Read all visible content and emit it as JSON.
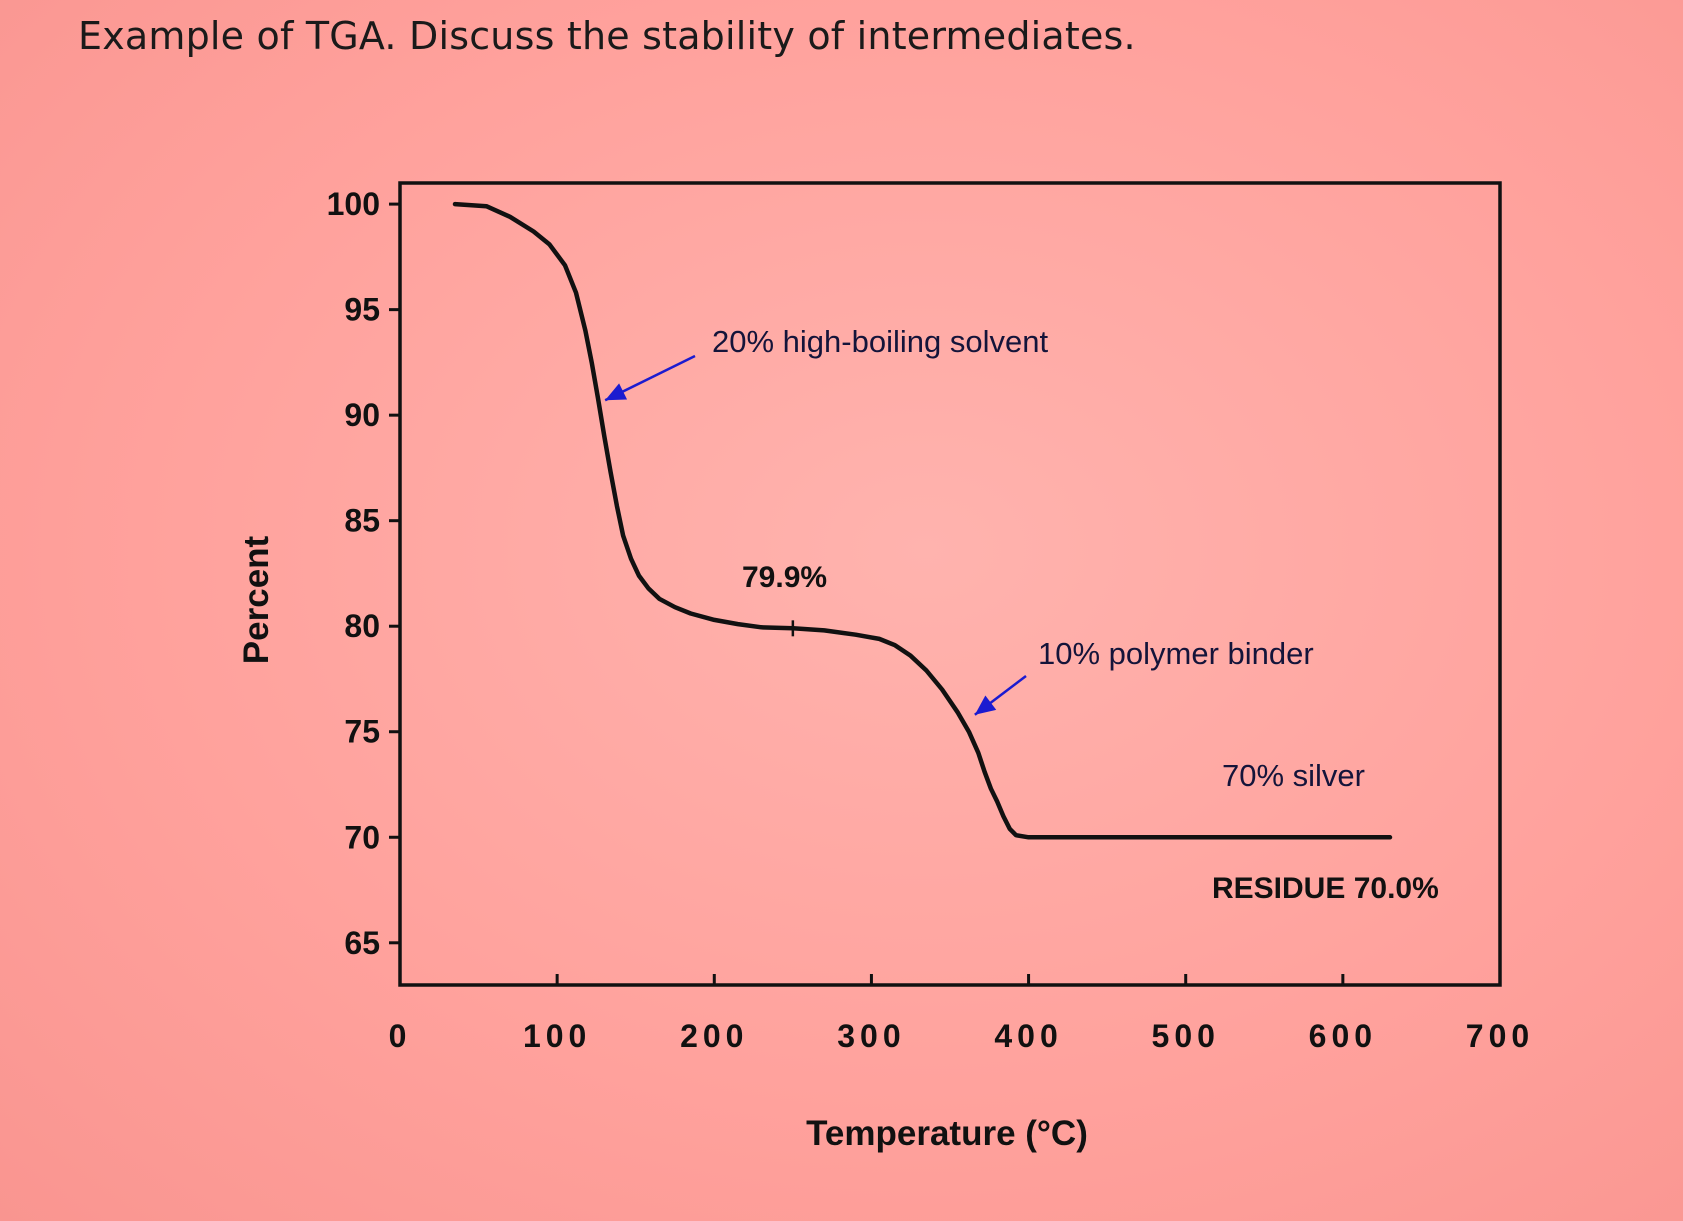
{
  "question": "Example of TGA. Discuss the stability of intermediates.",
  "chart_data": {
    "type": "line",
    "xlabel": "Temperature (°C)",
    "ylabel": "Percent",
    "xlim": [
      0,
      700
    ],
    "ylim": [
      63,
      101
    ],
    "x_ticks": [
      "0",
      "100",
      "200",
      "300",
      "400",
      "500",
      "600",
      "700"
    ],
    "y_ticks": [
      "100",
      "95",
      "90",
      "85",
      "80",
      "75",
      "70",
      "65"
    ],
    "grid": false,
    "series": [
      {
        "x": [
          35,
          55,
          70,
          85,
          95,
          105,
          112,
          118,
          122,
          126,
          130,
          134,
          138,
          142,
          147,
          152,
          158,
          165,
          175,
          185,
          200,
          215,
          230,
          250,
          270,
          290,
          305,
          315,
          325,
          335,
          345,
          355,
          362,
          368,
          372,
          376,
          380,
          384,
          388,
          392,
          400,
          450,
          500,
          550,
          600,
          630
        ],
        "y": [
          100.0,
          99.9,
          99.4,
          98.7,
          98.1,
          97.1,
          95.8,
          94.0,
          92.5,
          90.8,
          89.0,
          87.3,
          85.7,
          84.3,
          83.2,
          82.4,
          81.8,
          81.3,
          80.9,
          80.6,
          80.3,
          80.1,
          79.95,
          79.9,
          79.8,
          79.6,
          79.4,
          79.1,
          78.6,
          77.9,
          77.0,
          75.9,
          75.0,
          74.0,
          73.1,
          72.3,
          71.7,
          71.0,
          70.4,
          70.1,
          70.0,
          70.0,
          70.0,
          70.0,
          70.0,
          70.0
        ]
      }
    ],
    "annotations": [
      {
        "text": "20% high-boiling solvent",
        "x": 128,
        "y": 90.8,
        "color": "#1b1bd0"
      },
      {
        "text": "79.9%",
        "x": 250,
        "y": 79.9
      },
      {
        "text": "10% polymer binder",
        "x": 362,
        "y": 75.9,
        "color": "#1b1bd0"
      },
      {
        "text": "70% silver"
      },
      {
        "text": "RESIDUE 70.0%"
      }
    ]
  }
}
